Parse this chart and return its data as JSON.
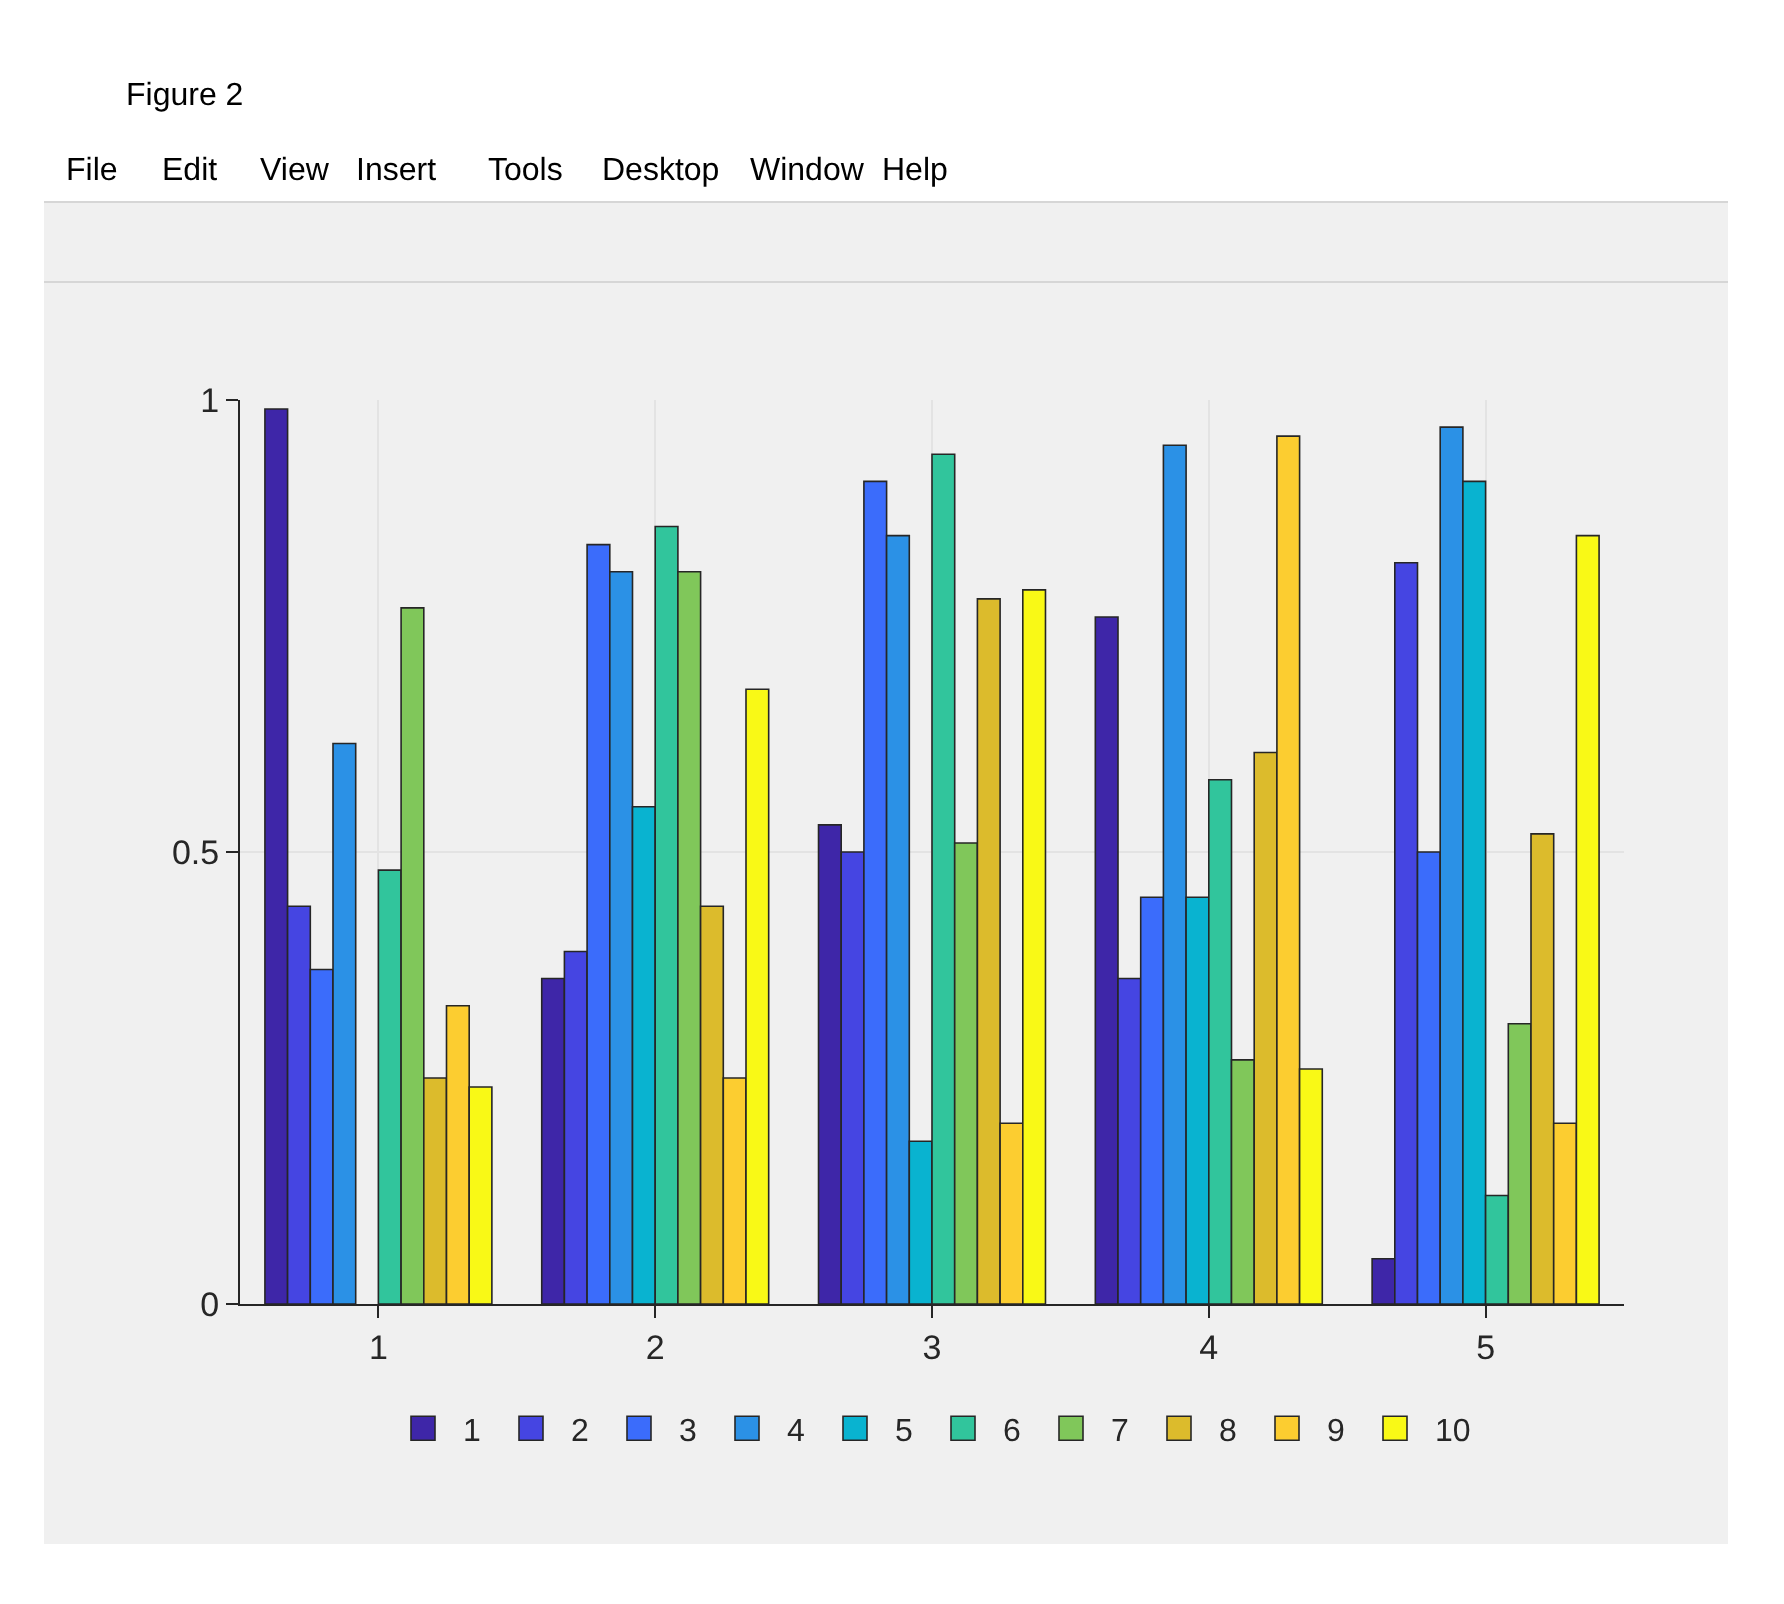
{
  "chart_data": {
    "type": "bar",
    "title": "Figure 2",
    "annotations": [
      "File",
      "Edit",
      "View",
      "Insert",
      "Tools",
      "Desktop",
      "Window",
      "Help"
    ],
    "categories": [
      "1",
      "2",
      "3",
      "4",
      "5"
    ],
    "series": [
      {
        "name": "1",
        "color": "#3e26a8",
        "values": [
          0.99,
          0.36,
          0.53,
          0.76,
          0.05
        ]
      },
      {
        "name": "2",
        "color": "#4545e2",
        "values": [
          0.44,
          0.39,
          0.5,
          0.36,
          0.82
        ]
      },
      {
        "name": "3",
        "color": "#3b6cfb",
        "values": [
          0.37,
          0.84,
          0.91,
          0.45,
          0.5
        ]
      },
      {
        "name": "4",
        "color": "#2b91e6",
        "values": [
          0.62,
          0.81,
          0.85,
          0.95,
          0.97
        ]
      },
      {
        "name": "5",
        "color": "#09b3d0",
        "values": [
          null,
          0.55,
          0.18,
          0.45,
          0.91
        ]
      },
      {
        "name": "6",
        "color": "#31c59c",
        "values": [
          0.48,
          0.86,
          0.94,
          0.58,
          0.12
        ]
      },
      {
        "name": "7",
        "color": "#80c75a",
        "values": [
          0.77,
          0.81,
          0.51,
          0.27,
          0.31
        ]
      },
      {
        "name": "8",
        "color": "#dcbb2c",
        "values": [
          0.25,
          0.44,
          0.78,
          0.61,
          0.52
        ]
      },
      {
        "name": "9",
        "color": "#fccd30",
        "values": [
          0.33,
          0.25,
          0.2,
          0.96,
          0.2
        ]
      },
      {
        "name": "10",
        "color": "#f9f916",
        "values": [
          0.24,
          0.68,
          0.79,
          0.26,
          0.85
        ]
      }
    ],
    "ylim": [
      0,
      1
    ],
    "yticks": [
      0,
      0.5,
      1
    ],
    "grid": true,
    "legend": "bottom"
  }
}
